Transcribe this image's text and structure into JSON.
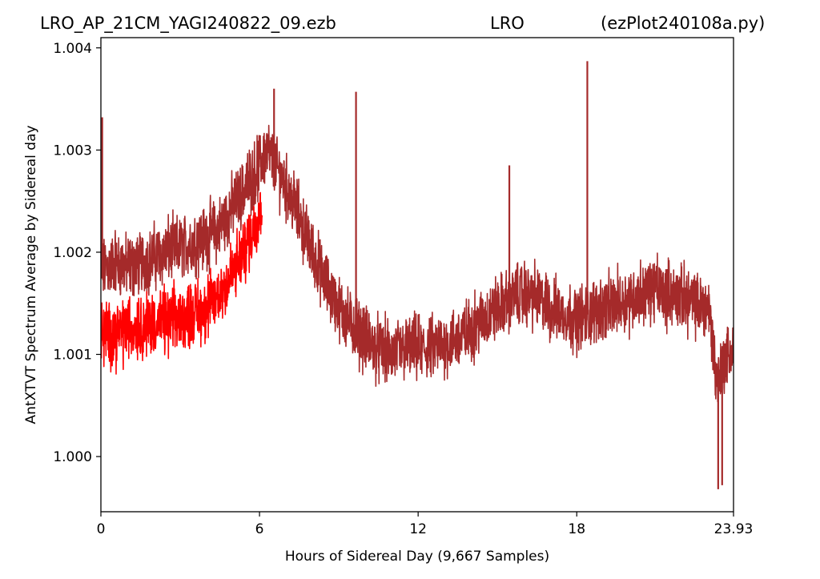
{
  "title": {
    "left": "LRO_AP_21CM_YAGI240822_09.ezb",
    "center": "LRO",
    "right": "(ezPlot240108a.py)"
  },
  "colors": {
    "series_main": "#a52a2a",
    "series_highlight": "#ff0000",
    "axes": "#000000",
    "background": "#ffffff"
  },
  "chart_data": {
    "type": "line",
    "xlabel": "Hours of Sidereal Day  (9,667 Samples)",
    "ylabel": "AntXTVT Spectrum Average by Sidereal day",
    "xlim": [
      0,
      23.93
    ],
    "ylim": [
      0.99946,
      1.0041
    ],
    "xticks": [
      {
        "value": 0,
        "label": "0"
      },
      {
        "value": 6,
        "label": "6"
      },
      {
        "value": 12,
        "label": "12"
      },
      {
        "value": 18,
        "label": "18"
      },
      {
        "value": 23.93,
        "label": "23.93"
      }
    ],
    "yticks": [
      {
        "value": 1.0,
        "label": "1.000"
      },
      {
        "value": 1.001,
        "label": "1.001"
      },
      {
        "value": 1.002,
        "label": "1.002"
      },
      {
        "value": 1.003,
        "label": "1.003"
      },
      {
        "value": 1.004,
        "label": "1.004"
      }
    ],
    "grid": false,
    "series": [
      {
        "color": "#a52a2a",
        "description_points": "hours vs. average (envelope: low, mid, high)",
        "x": [
          0.0,
          0.5,
          1.0,
          1.5,
          2.0,
          2.5,
          3.0,
          3.5,
          4.0,
          4.5,
          5.0,
          5.5,
          6.0,
          6.3,
          6.6,
          7.0,
          7.5,
          8.0,
          8.5,
          9.0,
          9.5,
          10.0,
          10.5,
          11.0,
          11.5,
          12.0,
          12.5,
          13.0,
          13.5,
          14.0,
          14.5,
          15.0,
          15.5,
          16.0,
          16.5,
          17.0,
          17.5,
          18.0,
          18.5,
          19.0,
          19.5,
          20.0,
          20.5,
          21.0,
          21.5,
          22.0,
          22.5,
          23.0,
          23.3,
          23.6,
          23.93
        ],
        "mid": [
          1.0018,
          1.0019,
          1.00185,
          1.0019,
          1.00195,
          1.002,
          1.00205,
          1.0021,
          1.00215,
          1.00225,
          1.00245,
          1.00265,
          1.00285,
          1.003,
          1.00285,
          1.00265,
          1.00235,
          1.002,
          1.0017,
          1.00145,
          1.0013,
          1.00115,
          1.00105,
          1.001,
          1.00105,
          1.00105,
          1.00105,
          1.0011,
          1.00115,
          1.00125,
          1.00135,
          1.00145,
          1.00155,
          1.0016,
          1.00155,
          1.00145,
          1.0014,
          1.00135,
          1.0014,
          1.00145,
          1.0015,
          1.00155,
          1.0016,
          1.00165,
          1.0016,
          1.00155,
          1.0015,
          1.00145,
          1.00075,
          1.00095,
          1.00105
        ],
        "spread": 0.00035,
        "spikes": [
          {
            "x": 0.05,
            "y": 1.00332
          },
          {
            "x": 6.55,
            "y": 1.0036
          },
          {
            "x": 9.65,
            "y": 1.00357
          },
          {
            "x": 15.45,
            "y": 1.00285
          },
          {
            "x": 18.4,
            "y": 1.00387
          },
          {
            "x": 23.35,
            "y": 0.99968
          },
          {
            "x": 23.5,
            "y": 0.99972
          }
        ]
      },
      {
        "color": "#ff0000",
        "description_points": "overlay segment from 0 to ~6.1 h",
        "x": [
          0.0,
          0.5,
          1.0,
          1.5,
          2.0,
          2.5,
          3.0,
          3.5,
          4.0,
          4.5,
          5.0,
          5.5,
          6.0,
          6.1
        ],
        "mid": [
          1.0012,
          1.0012,
          1.00125,
          1.00128,
          1.0013,
          1.00132,
          1.00135,
          1.0014,
          1.00145,
          1.0016,
          1.0018,
          1.00205,
          1.0024,
          1.0025
        ],
        "spread": 0.00035
      }
    ]
  }
}
